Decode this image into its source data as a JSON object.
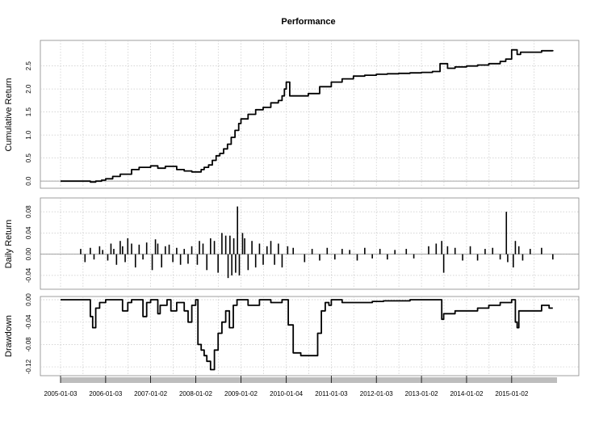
{
  "chart_data": {
    "type": "line",
    "title": "Performance",
    "x_range": [
      "2005-01-03",
      "2016-01-04"
    ],
    "x_tick_labels": [
      "2005-01-03",
      "2006-01-03",
      "2007-01-02",
      "2008-01-02",
      "2009-01-02",
      "2010-01-04",
      "2011-01-03",
      "2012-01-03",
      "2013-01-02",
      "2014-01-02",
      "2015-01-02"
    ],
    "grid": true,
    "panels": [
      {
        "ylabel": "Cumulative Return",
        "ylim": [
          -0.05,
          2.95
        ],
        "y_ticks": [
          "0.0",
          "0.5",
          "1.0",
          "1.5",
          "2.0",
          "2.5"
        ],
        "series": {
          "x": [
            "2005-01-03",
            "2005-07-01",
            "2005-09-01",
            "2005-10-15",
            "2005-12-01",
            "2006-01-03",
            "2006-03-01",
            "2006-05-01",
            "2006-08-01",
            "2006-10-01",
            "2007-01-02",
            "2007-03-01",
            "2007-05-01",
            "2007-08-01",
            "2007-10-01",
            "2007-12-01",
            "2008-01-02",
            "2008-02-15",
            "2008-03-10",
            "2008-04-15",
            "2008-05-15",
            "2008-06-15",
            "2008-07-15",
            "2008-08-15",
            "2008-09-15",
            "2008-10-15",
            "2008-11-15",
            "2008-12-15",
            "2009-01-02",
            "2009-03-01",
            "2009-05-01",
            "2009-07-01",
            "2009-09-01",
            "2009-11-01",
            "2009-12-01",
            "2009-12-20",
            "2010-01-04",
            "2010-02-01",
            "2010-04-01",
            "2010-07-01",
            "2010-10-01",
            "2011-01-03",
            "2011-04-01",
            "2011-07-01",
            "2011-10-01",
            "2012-01-03",
            "2012-04-01",
            "2012-07-01",
            "2012-10-01",
            "2013-01-02",
            "2013-04-01",
            "2013-06-01",
            "2013-08-01",
            "2013-10-01",
            "2014-01-02",
            "2014-04-01",
            "2014-07-01",
            "2014-10-01",
            "2014-11-15",
            "2015-01-02",
            "2015-02-15",
            "2015-03-15",
            "2015-06-01",
            "2015-09-01",
            "2015-12-01"
          ],
          "values": [
            0.0,
            0.0,
            -0.02,
            0.0,
            0.02,
            0.05,
            0.1,
            0.15,
            0.25,
            0.3,
            0.33,
            0.28,
            0.32,
            0.25,
            0.22,
            0.2,
            0.2,
            0.25,
            0.3,
            0.35,
            0.45,
            0.55,
            0.6,
            0.7,
            0.8,
            0.95,
            1.1,
            1.25,
            1.35,
            1.45,
            1.55,
            1.6,
            1.7,
            1.75,
            1.85,
            2.0,
            2.15,
            1.85,
            1.85,
            1.9,
            2.05,
            2.15,
            2.22,
            2.28,
            2.3,
            2.32,
            2.33,
            2.34,
            2.35,
            2.36,
            2.38,
            2.55,
            2.45,
            2.48,
            2.5,
            2.52,
            2.55,
            2.6,
            2.65,
            2.85,
            2.75,
            2.8,
            2.8,
            2.83,
            2.82
          ]
        }
      },
      {
        "ylabel": "Daily Return",
        "ylim": [
          -0.06,
          0.1
        ],
        "y_ticks": [
          "-0.04",
          "0.00",
          "0.04",
          "0.08"
        ],
        "series": {
          "x": [
            "2005-06-15",
            "2005-07-20",
            "2005-09-01",
            "2005-10-01",
            "2005-11-15",
            "2005-12-10",
            "2006-01-20",
            "2006-02-15",
            "2006-03-10",
            "2006-04-01",
            "2006-05-01",
            "2006-05-20",
            "2006-06-10",
            "2006-07-01",
            "2006-08-01",
            "2006-09-01",
            "2006-10-01",
            "2006-11-01",
            "2006-12-01",
            "2007-01-15",
            "2007-02-10",
            "2007-03-01",
            "2007-04-01",
            "2007-05-01",
            "2007-06-01",
            "2007-07-01",
            "2007-08-01",
            "2007-09-01",
            "2007-10-01",
            "2007-11-01",
            "2007-12-01",
            "2008-01-15",
            "2008-02-01",
            "2008-03-01",
            "2008-04-01",
            "2008-05-01",
            "2008-06-01",
            "2008-07-01",
            "2008-08-01",
            "2008-09-01",
            "2008-09-20",
            "2008-10-05",
            "2008-10-20",
            "2008-11-05",
            "2008-11-20",
            "2008-12-05",
            "2008-12-20",
            "2009-01-15",
            "2009-02-01",
            "2009-03-01",
            "2009-04-01",
            "2009-05-01",
            "2009-06-01",
            "2009-07-01",
            "2009-08-01",
            "2009-09-01",
            "2009-10-01",
            "2009-11-01",
            "2009-12-01",
            "2010-01-15",
            "2010-03-01",
            "2010-06-01",
            "2010-08-01",
            "2010-10-01",
            "2010-12-01",
            "2011-02-01",
            "2011-04-01",
            "2011-06-01",
            "2011-08-01",
            "2011-10-01",
            "2011-12-01",
            "2012-02-01",
            "2012-04-01",
            "2012-06-01",
            "2012-09-01",
            "2012-11-01",
            "2013-03-01",
            "2013-05-01",
            "2013-06-15",
            "2013-07-01",
            "2013-08-01",
            "2013-10-01",
            "2013-12-01",
            "2014-02-01",
            "2014-04-01",
            "2014-06-01",
            "2014-08-01",
            "2014-10-01",
            "2014-11-20",
            "2014-12-01",
            "2015-01-15",
            "2015-02-01",
            "2015-03-01",
            "2015-04-01",
            "2015-06-01",
            "2015-09-01",
            "2015-12-01"
          ],
          "values": [
            0.01,
            -0.015,
            0.012,
            -0.01,
            0.015,
            0.008,
            -0.012,
            0.02,
            0.01,
            -0.02,
            0.025,
            0.015,
            -0.015,
            0.03,
            0.02,
            -0.025,
            0.018,
            -0.01,
            0.022,
            -0.03,
            0.028,
            0.02,
            -0.025,
            0.015,
            0.018,
            -0.015,
            0.012,
            -0.02,
            0.01,
            -0.018,
            0.015,
            -0.02,
            0.025,
            0.02,
            -0.03,
            0.03,
            0.025,
            -0.035,
            0.04,
            0.035,
            -0.045,
            0.035,
            -0.04,
            0.03,
            -0.035,
            0.09,
            -0.04,
            0.04,
            0.03,
            -0.03,
            0.025,
            -0.025,
            0.02,
            -0.02,
            0.015,
            0.025,
            -0.02,
            0.02,
            -0.025,
            0.015,
            0.012,
            -0.015,
            0.01,
            -0.012,
            0.012,
            -0.01,
            0.01,
            0.008,
            -0.012,
            0.012,
            -0.008,
            0.01,
            -0.01,
            0.008,
            0.01,
            -0.008,
            0.015,
            0.02,
            0.025,
            -0.035,
            0.015,
            0.012,
            -0.012,
            0.015,
            -0.012,
            0.01,
            0.012,
            -0.01,
            0.08,
            -0.015,
            -0.025,
            0.025,
            0.015,
            -0.012,
            0.01,
            0.012,
            -0.01
          ]
        }
      },
      {
        "ylabel": "Drawdown",
        "ylim": [
          -0.13,
          0.0
        ],
        "y_ticks": [
          "-0.12",
          "-0.08",
          "-0.04",
          "0.00"
        ],
        "series": {
          "x": [
            "2005-01-03",
            "2005-08-15",
            "2005-09-01",
            "2005-09-20",
            "2005-10-15",
            "2005-11-15",
            "2006-01-03",
            "2006-05-01",
            "2006-05-20",
            "2006-07-01",
            "2006-08-01",
            "2006-11-01",
            "2006-12-01",
            "2007-01-02",
            "2007-03-01",
            "2007-03-20",
            "2007-05-15",
            "2007-06-15",
            "2007-08-01",
            "2007-09-01",
            "2007-10-01",
            "2007-11-01",
            "2007-12-01",
            "2008-01-02",
            "2008-01-20",
            "2008-02-15",
            "2008-03-10",
            "2008-04-01",
            "2008-05-01",
            "2008-06-01",
            "2008-07-01",
            "2008-08-01",
            "2008-09-01",
            "2008-10-01",
            "2008-11-01",
            "2008-12-01",
            "2009-01-02",
            "2009-03-01",
            "2009-06-01",
            "2009-09-01",
            "2009-12-01",
            "2010-01-04",
            "2010-01-20",
            "2010-03-01",
            "2010-05-01",
            "2010-06-15",
            "2010-08-01",
            "2010-09-15",
            "2010-10-15",
            "2010-11-15",
            "2010-12-15",
            "2011-01-03",
            "2011-04-01",
            "2011-08-01",
            "2011-12-01",
            "2012-03-01",
            "2012-07-01",
            "2012-10-01",
            "2013-01-02",
            "2013-05-01",
            "2013-06-15",
            "2013-07-01",
            "2013-08-01",
            "2013-10-01",
            "2014-01-02",
            "2014-04-01",
            "2014-07-01",
            "2014-10-01",
            "2014-12-01",
            "2015-01-02",
            "2015-02-01",
            "2015-02-15",
            "2015-03-01",
            "2015-06-01",
            "2015-09-01",
            "2015-11-01",
            "2015-12-01"
          ],
          "values": [
            0.0,
            0.0,
            -0.03,
            -0.05,
            -0.015,
            -0.005,
            0.0,
            0.0,
            -0.02,
            -0.005,
            0.0,
            -0.03,
            -0.005,
            0.0,
            -0.025,
            -0.01,
            0.0,
            -0.02,
            -0.005,
            -0.005,
            -0.02,
            -0.04,
            -0.01,
            0.0,
            -0.08,
            -0.09,
            -0.1,
            -0.11,
            -0.125,
            -0.09,
            -0.06,
            -0.04,
            -0.02,
            -0.05,
            -0.01,
            0.0,
            0.0,
            -0.01,
            0.0,
            -0.005,
            0.0,
            0.0,
            -0.045,
            -0.095,
            -0.1,
            -0.1,
            -0.1,
            -0.06,
            -0.02,
            -0.005,
            -0.01,
            0.0,
            -0.005,
            -0.005,
            -0.003,
            -0.002,
            -0.002,
            0.0,
            0.0,
            0.0,
            -0.035,
            -0.025,
            -0.025,
            -0.02,
            -0.02,
            -0.015,
            -0.01,
            -0.005,
            -0.005,
            0.0,
            -0.04,
            -0.05,
            -0.02,
            -0.02,
            -0.01,
            -0.015,
            -0.015
          ]
        }
      }
    ]
  }
}
